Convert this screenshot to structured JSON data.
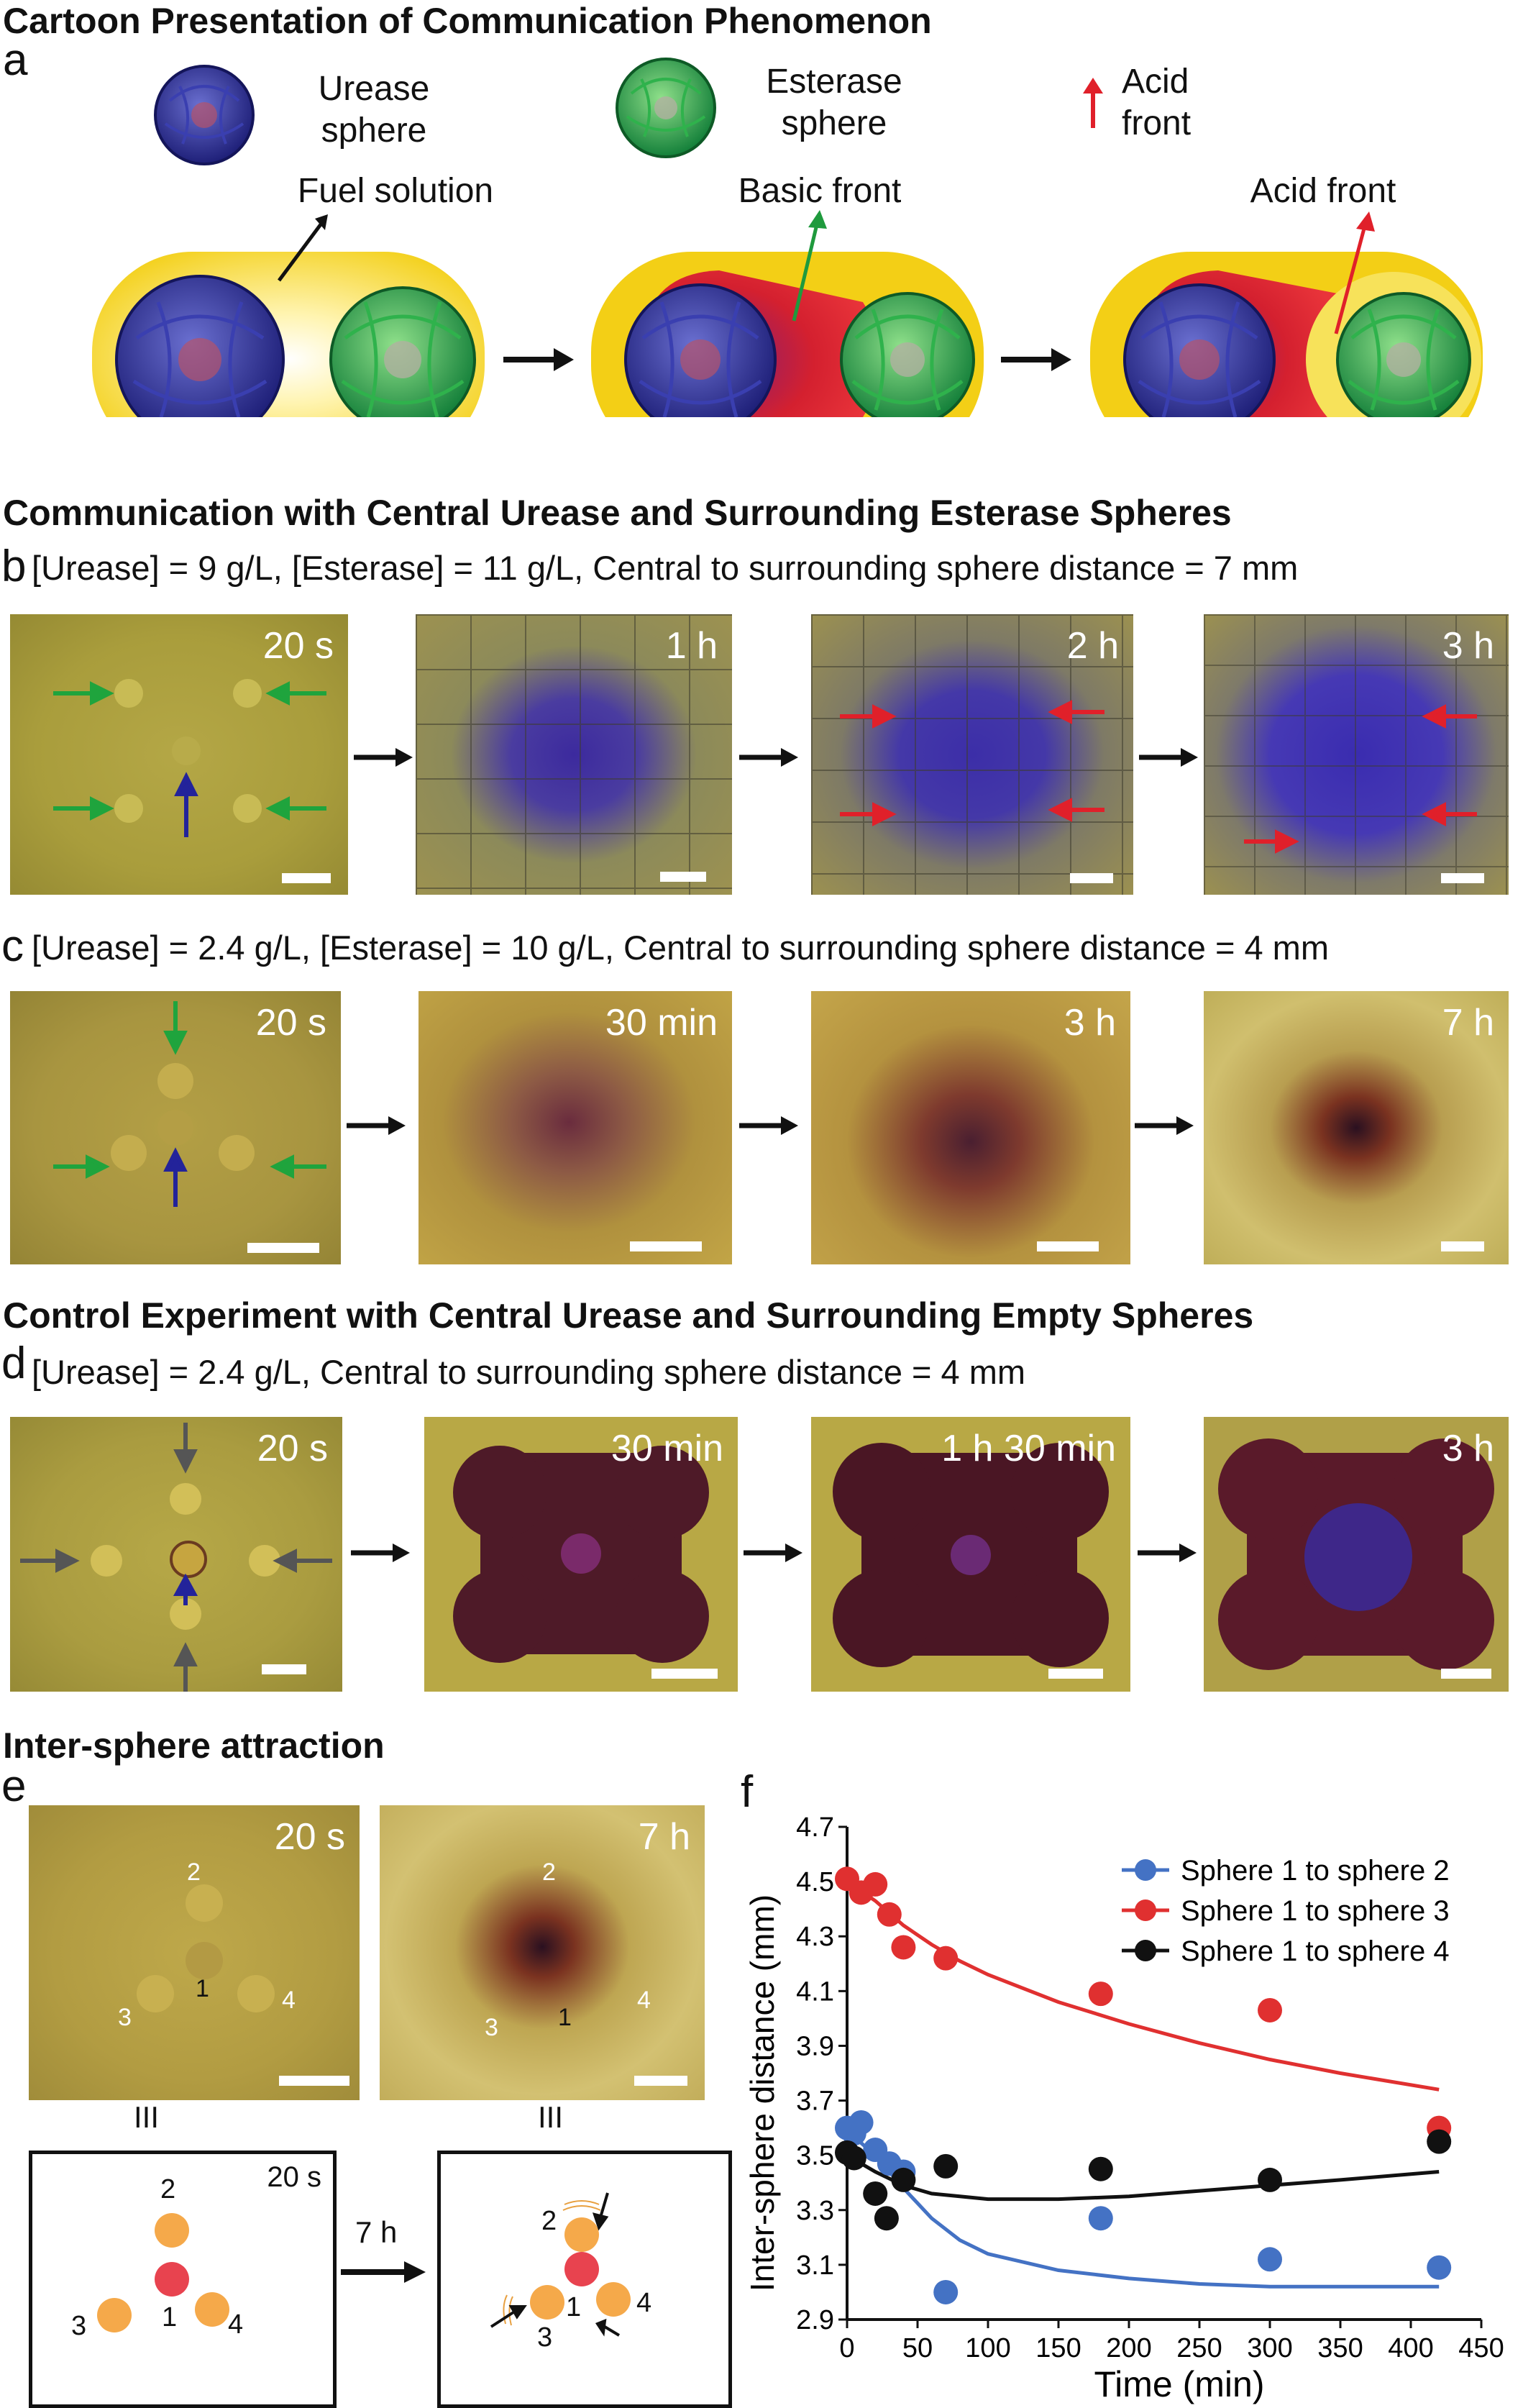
{
  "figure": {
    "title_cartoon": "Cartoon Presentation of Communication Phenomenon",
    "title_b": "Communication with Central Urease and Surrounding Esterase Spheres",
    "title_control": "Control Experiment with Central Urease and Surrounding Empty Spheres",
    "title_e": "Inter-sphere attraction"
  },
  "panel_a": {
    "letter": "a",
    "urease_label": [
      "Urease",
      "sphere"
    ],
    "esterase_label": [
      "Esterase",
      "sphere"
    ],
    "acid_label": [
      "Acid",
      "front"
    ],
    "fuel": "Fuel solution",
    "basic_front": "Basic front",
    "acid_front": "Acid front",
    "colors": {
      "urease": "#2e2f8f",
      "esterase": "#1f9a3d",
      "fuel": "#f4d21a",
      "basic": "#c0203a",
      "acid_arrow": "#e0202a"
    }
  },
  "panel_b": {
    "letter": "b",
    "condition": "[Urease] = 9 g/L, [Esterase] = 11 g/L, Central to surrounding sphere distance = 7 mm",
    "times": [
      "20 s",
      "1 h",
      "2 h",
      "3 h"
    ]
  },
  "panel_c": {
    "letter": "c",
    "condition": "[Urease] = 2.4 g/L, [Esterase] = 10 g/L, Central to surrounding sphere distance = 4 mm",
    "times": [
      "20 s",
      "30 min",
      "3 h",
      "7 h"
    ]
  },
  "panel_d": {
    "letter": "d",
    "condition": "[Urease] = 2.4 g/L, Central to surrounding sphere distance = 4 mm",
    "times": [
      "20 s",
      "30 min",
      "1 h 30 min",
      "3 h"
    ]
  },
  "panel_e": {
    "letter": "e",
    "times": [
      "20 s",
      "7 h"
    ],
    "sphere_numbers": [
      "1",
      "2",
      "3",
      "4"
    ],
    "equiv": "III",
    "diagram_time": "20 s",
    "transition": "7 h"
  },
  "panel_f": {
    "letter": "f"
  },
  "chart_data": {
    "type": "scatter",
    "xlabel": "Time (min)",
    "ylabel": "Inter-sphere distance (mm)",
    "xlim": [
      0,
      450
    ],
    "ylim": [
      2.9,
      4.7
    ],
    "xticks": [
      "0",
      "50",
      "100",
      "150",
      "200",
      "250",
      "300",
      "350",
      "400",
      "450"
    ],
    "yticks": [
      "2.9",
      "3.1",
      "3.3",
      "3.5",
      "3.7",
      "3.9",
      "4.1",
      "4.3",
      "4.5",
      "4.7"
    ],
    "legend_position": "top-right",
    "series": [
      {
        "name": "Sphere 1 to sphere 2",
        "color": "#4472c4",
        "x": [
          0,
          5,
          10,
          20,
          30,
          40,
          70,
          180,
          300,
          420
        ],
        "y": [
          3.6,
          3.58,
          3.62,
          3.52,
          3.47,
          3.44,
          3.0,
          3.27,
          3.12,
          3.09
        ],
        "fit": [
          [
            0,
            3.59
          ],
          [
            20,
            3.5
          ],
          [
            40,
            3.38
          ],
          [
            60,
            3.27
          ],
          [
            80,
            3.19
          ],
          [
            100,
            3.14
          ],
          [
            150,
            3.08
          ],
          [
            200,
            3.05
          ],
          [
            250,
            3.03
          ],
          [
            300,
            3.02
          ],
          [
            350,
            3.02
          ],
          [
            420,
            3.02
          ]
        ]
      },
      {
        "name": "Sphere 1 to sphere 3",
        "color": "#e03030",
        "x": [
          0,
          10,
          20,
          30,
          40,
          70,
          180,
          300,
          420
        ],
        "y": [
          4.51,
          4.46,
          4.49,
          4.38,
          4.26,
          4.22,
          4.09,
          4.03,
          3.6
        ],
        "fit": [
          [
            0,
            4.5
          ],
          [
            20,
            4.43
          ],
          [
            40,
            4.34
          ],
          [
            60,
            4.27
          ],
          [
            80,
            4.21
          ],
          [
            100,
            4.16
          ],
          [
            150,
            4.06
          ],
          [
            200,
            3.98
          ],
          [
            250,
            3.91
          ],
          [
            300,
            3.85
          ],
          [
            350,
            3.8
          ],
          [
            420,
            3.74
          ]
        ]
      },
      {
        "name": "Sphere 1 to sphere 4",
        "color": "#111111",
        "x": [
          0,
          5,
          20,
          28,
          40,
          70,
          180,
          300,
          420
        ],
        "y": [
          3.51,
          3.49,
          3.36,
          3.27,
          3.41,
          3.46,
          3.45,
          3.41,
          3.55
        ],
        "fit": [
          [
            0,
            3.5
          ],
          [
            20,
            3.44
          ],
          [
            40,
            3.39
          ],
          [
            60,
            3.36
          ],
          [
            80,
            3.35
          ],
          [
            100,
            3.34
          ],
          [
            150,
            3.34
          ],
          [
            200,
            3.35
          ],
          [
            250,
            3.37
          ],
          [
            300,
            3.39
          ],
          [
            350,
            3.41
          ],
          [
            420,
            3.44
          ]
        ]
      }
    ]
  }
}
